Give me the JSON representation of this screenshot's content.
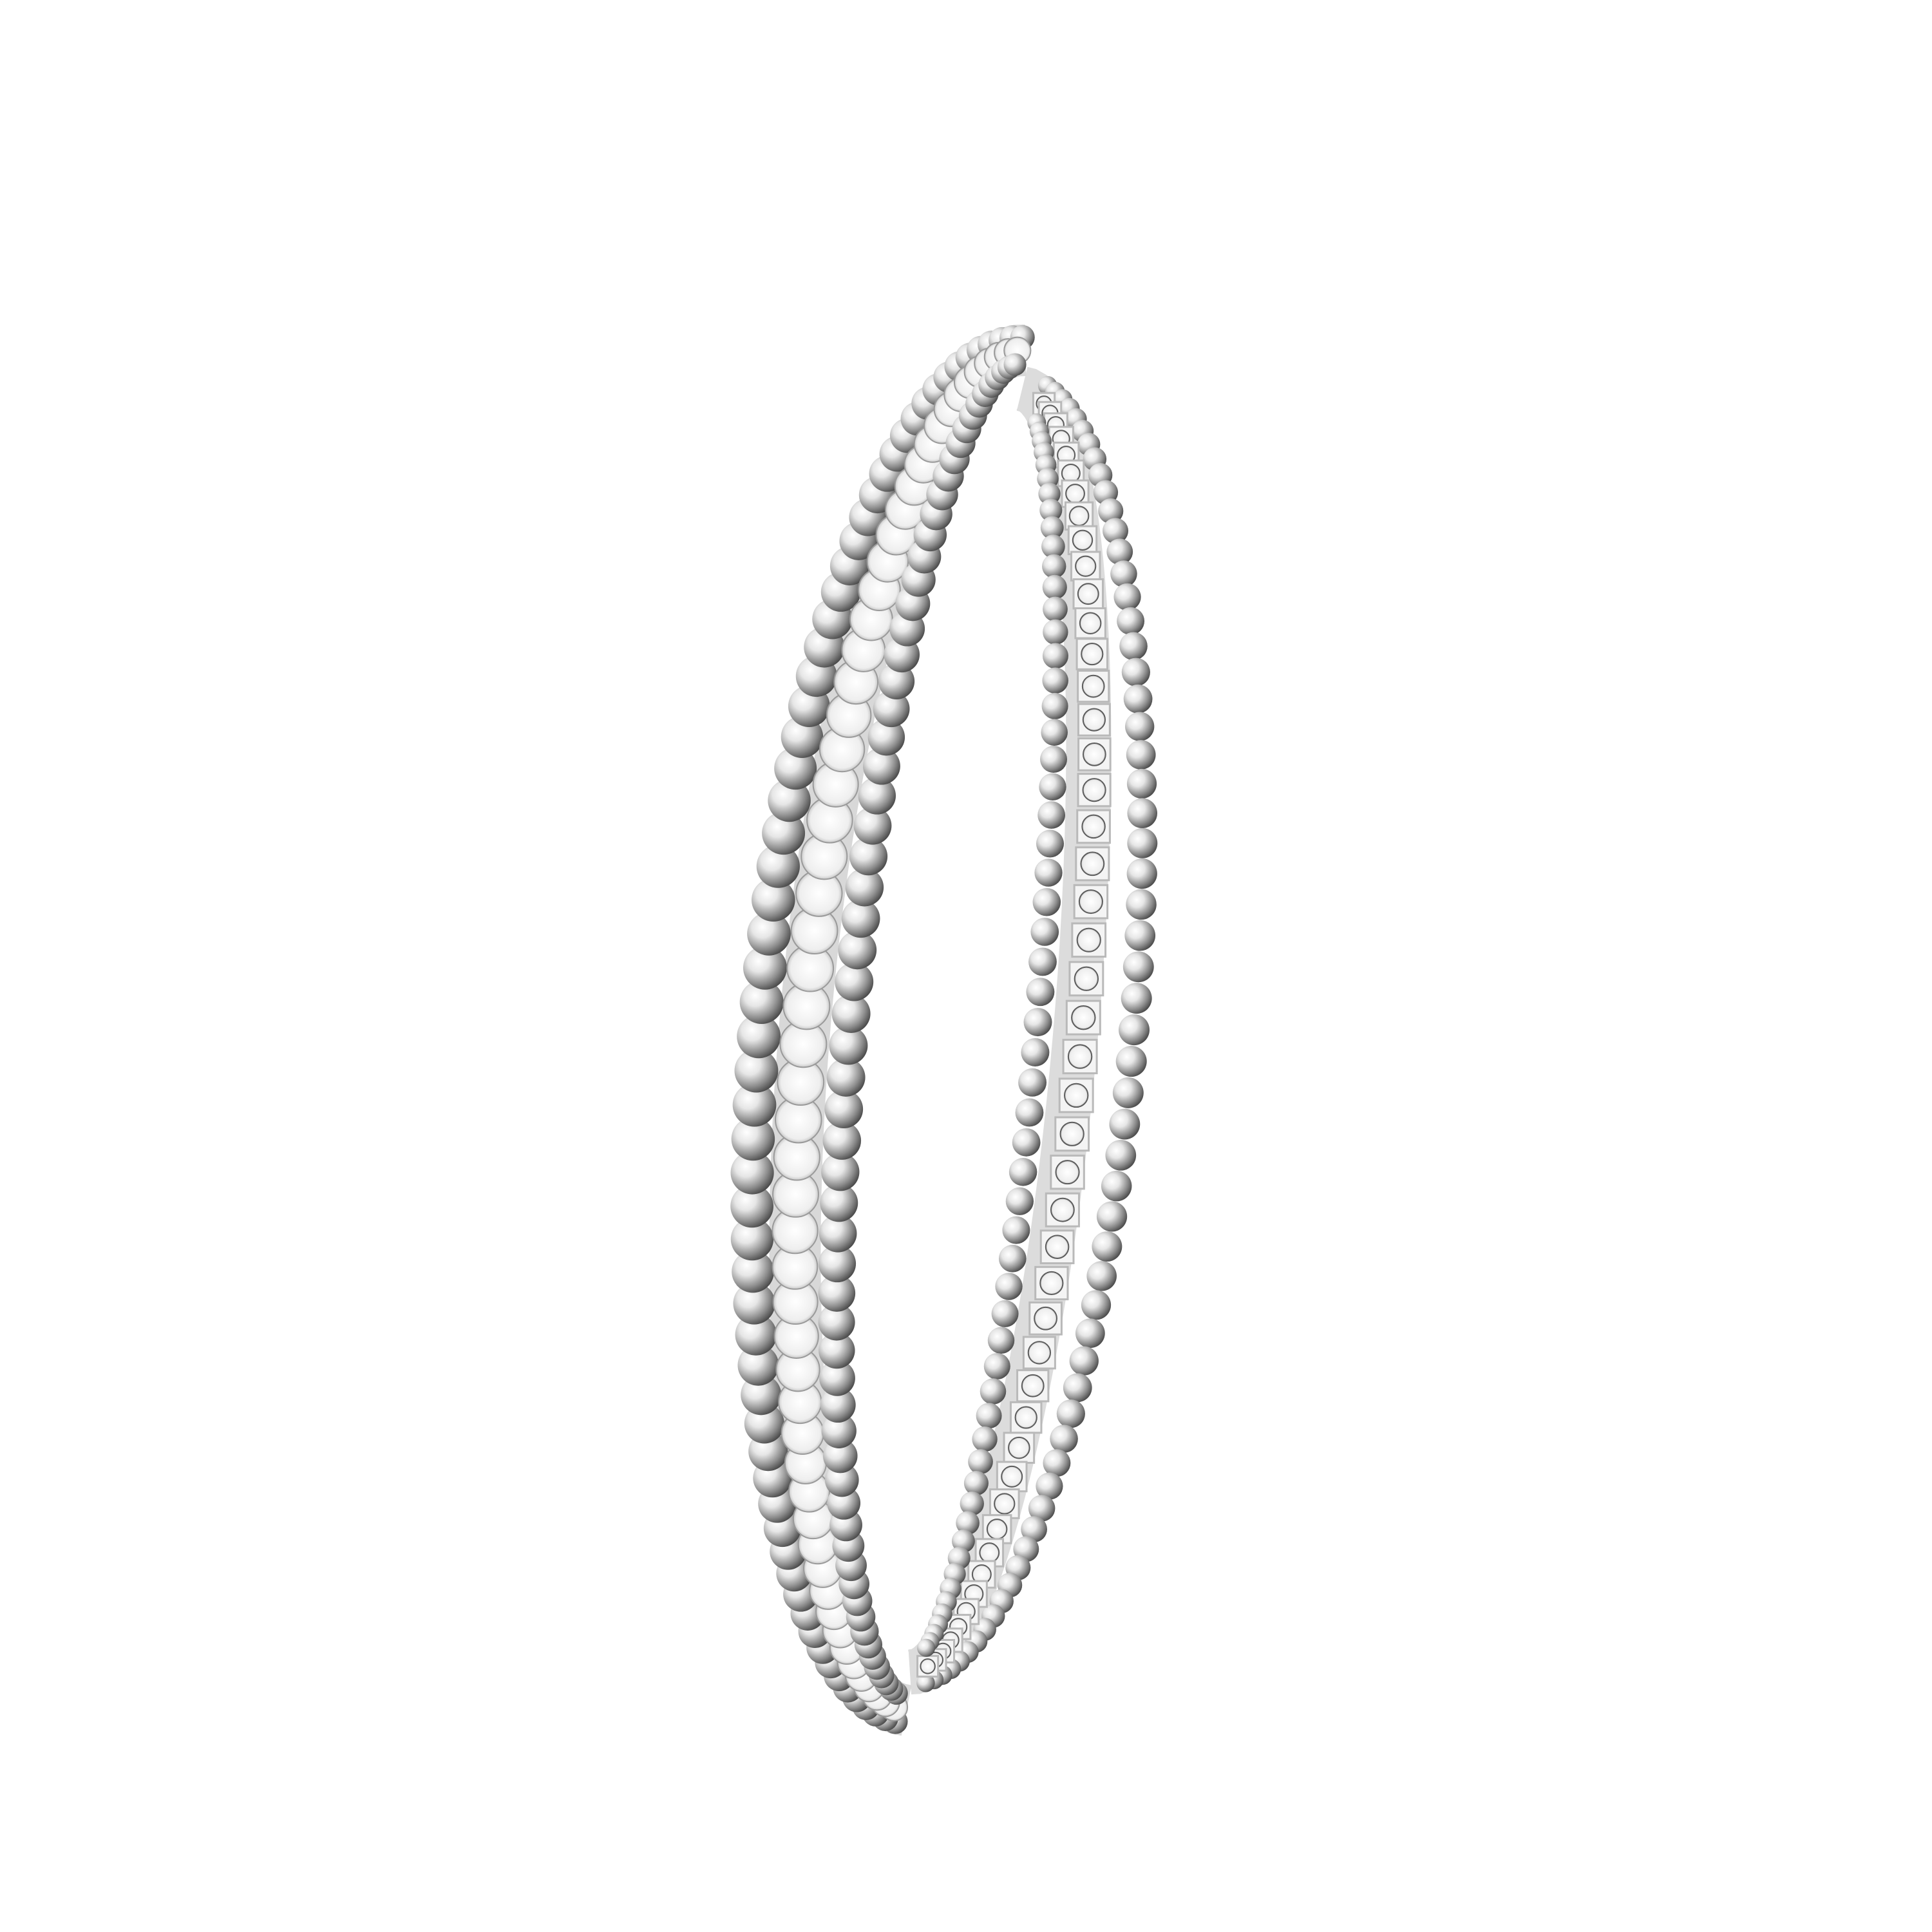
{
  "image": {
    "subject": "bangle",
    "colors": {
      "background": "#ffffff",
      "metal_light": "#f4f4f4",
      "metal_mid": "#b9b9b9",
      "metal_dark": "#5c5c5c",
      "diamond": "#fbfbfb",
      "diamond_edge": "#9a9a9a"
    }
  }
}
